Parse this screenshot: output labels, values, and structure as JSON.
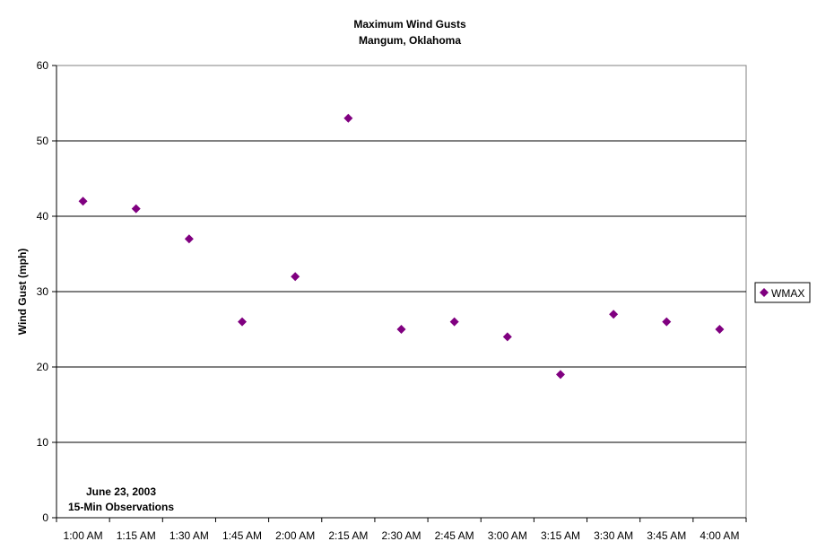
{
  "chart_data": {
    "type": "scatter",
    "title": "Maximum Wind Gusts",
    "subtitle": "Mangum, Oklahoma",
    "xlabel": "",
    "ylabel": "Wind Gust (mph)",
    "categories": [
      "1:00 AM",
      "1:15 AM",
      "1:30 AM",
      "1:45 AM",
      "2:00 AM",
      "2:15 AM",
      "2:30 AM",
      "2:45 AM",
      "3:00 AM",
      "3:15 AM",
      "3:30 AM",
      "3:45 AM",
      "4:00 AM"
    ],
    "series": [
      {
        "name": "WMAX",
        "color": "#800080",
        "values": [
          42,
          41,
          37,
          26,
          32,
          53,
          25,
          26,
          24,
          19,
          27,
          26,
          25
        ]
      }
    ],
    "ylim": [
      0,
      60
    ],
    "yticks": [
      0,
      10,
      20,
      30,
      40,
      50,
      60
    ],
    "grid": true,
    "legend": "right",
    "annotation": [
      "June 23, 2003",
      "15-Min Observations"
    ]
  }
}
